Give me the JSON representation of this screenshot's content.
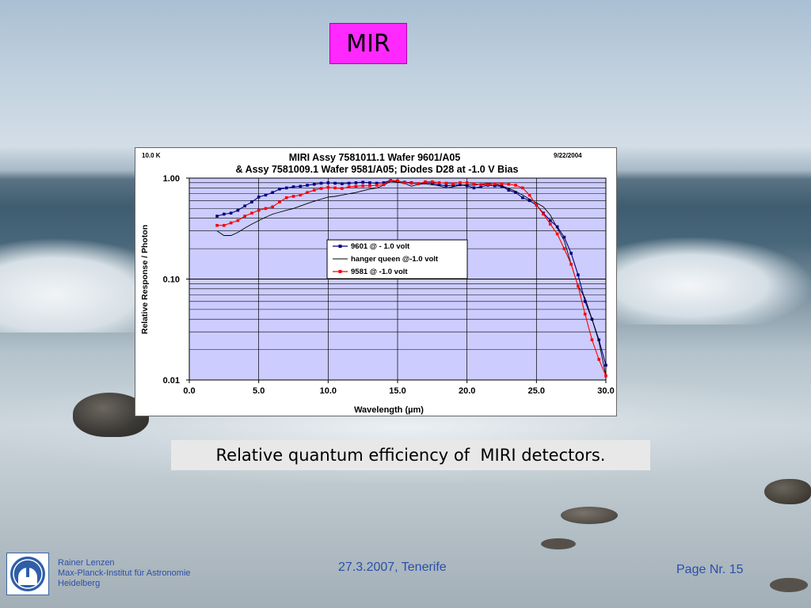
{
  "slide": {
    "title": "MIR",
    "caption": "Relative quantum efficiency of  MIRI detectors.",
    "footer": {
      "author_lines": [
        "Rainer Lenzen",
        "Max-Planck-Institut für Astronomie",
        "Heidelberg"
      ],
      "date": "27.3.2007, Tenerife",
      "page": "Page Nr. 15"
    },
    "logo": "max-planck-institute-logo"
  },
  "chart_data": {
    "type": "line",
    "title": "MIRI Assy 7581011.1 Wafer 9601/A05",
    "subtitle": "& Assy 7581009.1 Wafer 9581/A05; Diodes D28 at -1.0 V Bias",
    "corner_left": "10.0 K",
    "corner_right": "9/22/2004",
    "xlabel": "Wavelength (µm)",
    "ylabel": "Relative Response / Photon",
    "xlim": [
      0,
      30
    ],
    "ylim": [
      0.01,
      1.0
    ],
    "yscale": "log",
    "xticks": [
      "0.0",
      "5.0",
      "10.0",
      "15.0",
      "20.0",
      "25.0",
      "30.0"
    ],
    "yticks": [
      "0.01",
      "0.10",
      "1.00"
    ],
    "plot_background": "#ccccff",
    "grid": true,
    "legend_position": "center",
    "series": [
      {
        "name": "9601 @ - 1.0 volt",
        "color": "#000080",
        "marker": "square",
        "x": [
          2.0,
          2.5,
          3.0,
          3.5,
          4.0,
          4.5,
          5.0,
          5.5,
          6.0,
          6.5,
          7.0,
          7.5,
          8.0,
          8.5,
          9.0,
          9.5,
          10.0,
          10.5,
          11.0,
          11.5,
          12.0,
          12.5,
          13.0,
          13.5,
          14.0,
          14.5,
          15.0,
          15.5,
          16.0,
          16.5,
          17.0,
          17.5,
          18.0,
          18.5,
          19.0,
          19.5,
          20.0,
          20.5,
          21.0,
          21.5,
          22.0,
          22.5,
          23.0,
          23.5,
          24.0,
          24.5,
          25.0,
          25.5,
          26.0,
          26.5,
          27.0,
          27.5,
          28.0,
          28.5,
          29.0,
          29.5,
          30.0
        ],
        "y": [
          0.42,
          0.44,
          0.45,
          0.48,
          0.53,
          0.58,
          0.65,
          0.68,
          0.72,
          0.78,
          0.8,
          0.82,
          0.83,
          0.85,
          0.87,
          0.89,
          0.9,
          0.89,
          0.88,
          0.89,
          0.9,
          0.91,
          0.9,
          0.89,
          0.9,
          0.95,
          0.93,
          0.91,
          0.9,
          0.88,
          0.9,
          0.89,
          0.86,
          0.84,
          0.85,
          0.86,
          0.84,
          0.8,
          0.82,
          0.85,
          0.84,
          0.83,
          0.76,
          0.72,
          0.64,
          0.6,
          0.54,
          0.45,
          0.38,
          0.33,
          0.26,
          0.18,
          0.11,
          0.06,
          0.04,
          0.025,
          0.014
        ]
      },
      {
        "name": "hanger queen @-1.0 volt",
        "color": "#000000",
        "marker": "none",
        "x": [
          2.0,
          2.5,
          3.0,
          3.5,
          4.0,
          4.5,
          5.0,
          5.5,
          6.0,
          6.5,
          7.0,
          7.5,
          8.0,
          8.5,
          9.0,
          9.5,
          10.0,
          10.5,
          11.0,
          11.5,
          12.0,
          12.5,
          13.0,
          13.5,
          14.0,
          14.5,
          15.0,
          15.5,
          16.0,
          16.5,
          17.0,
          17.5,
          18.0,
          18.5,
          19.0,
          19.5,
          20.0,
          20.5,
          21.0,
          21.5,
          22.0,
          22.5,
          23.0,
          23.5,
          24.0,
          24.5,
          25.0,
          25.5,
          26.0,
          26.5,
          27.0,
          27.5,
          28.0,
          28.5,
          29.0,
          29.5,
          30.0
        ],
        "y": [
          0.3,
          0.27,
          0.27,
          0.29,
          0.32,
          0.35,
          0.38,
          0.41,
          0.44,
          0.46,
          0.48,
          0.5,
          0.53,
          0.56,
          0.59,
          0.62,
          0.65,
          0.66,
          0.68,
          0.7,
          0.72,
          0.75,
          0.78,
          0.8,
          0.85,
          0.93,
          0.91,
          0.89,
          0.83,
          0.87,
          0.88,
          0.86,
          0.84,
          0.8,
          0.82,
          0.85,
          0.86,
          0.85,
          0.87,
          0.89,
          0.87,
          0.84,
          0.79,
          0.74,
          0.68,
          0.62,
          0.57,
          0.52,
          0.43,
          0.32,
          0.24,
          0.14,
          0.085,
          0.065,
          0.04,
          0.024,
          0.011
        ]
      },
      {
        "name": "9581 @ -1.0 volt",
        "color": "#ff0000",
        "marker": "square",
        "x": [
          2.0,
          2.5,
          3.0,
          3.5,
          4.0,
          4.5,
          5.0,
          5.5,
          6.0,
          6.5,
          7.0,
          7.5,
          8.0,
          8.5,
          9.0,
          9.5,
          10.0,
          10.5,
          11.0,
          11.5,
          12.0,
          12.5,
          13.0,
          13.5,
          14.0,
          14.5,
          15.0,
          15.5,
          16.0,
          16.5,
          17.0,
          17.5,
          18.0,
          18.5,
          19.0,
          19.5,
          20.0,
          20.5,
          21.0,
          21.5,
          22.0,
          22.5,
          23.0,
          23.5,
          24.0,
          24.5,
          25.0,
          25.5,
          26.0,
          26.5,
          27.0,
          27.5,
          28.0,
          28.5,
          29.0,
          29.5,
          30.0
        ],
        "y": [
          0.34,
          0.34,
          0.36,
          0.38,
          0.42,
          0.45,
          0.48,
          0.5,
          0.52,
          0.58,
          0.64,
          0.66,
          0.68,
          0.72,
          0.76,
          0.79,
          0.81,
          0.8,
          0.79,
          0.82,
          0.83,
          0.84,
          0.84,
          0.85,
          0.86,
          0.95,
          0.94,
          0.9,
          0.89,
          0.88,
          0.92,
          0.92,
          0.9,
          0.89,
          0.88,
          0.9,
          0.9,
          0.88,
          0.86,
          0.86,
          0.88,
          0.88,
          0.87,
          0.85,
          0.8,
          0.68,
          0.54,
          0.44,
          0.35,
          0.28,
          0.2,
          0.14,
          0.085,
          0.045,
          0.025,
          0.016,
          0.011
        ]
      }
    ]
  }
}
